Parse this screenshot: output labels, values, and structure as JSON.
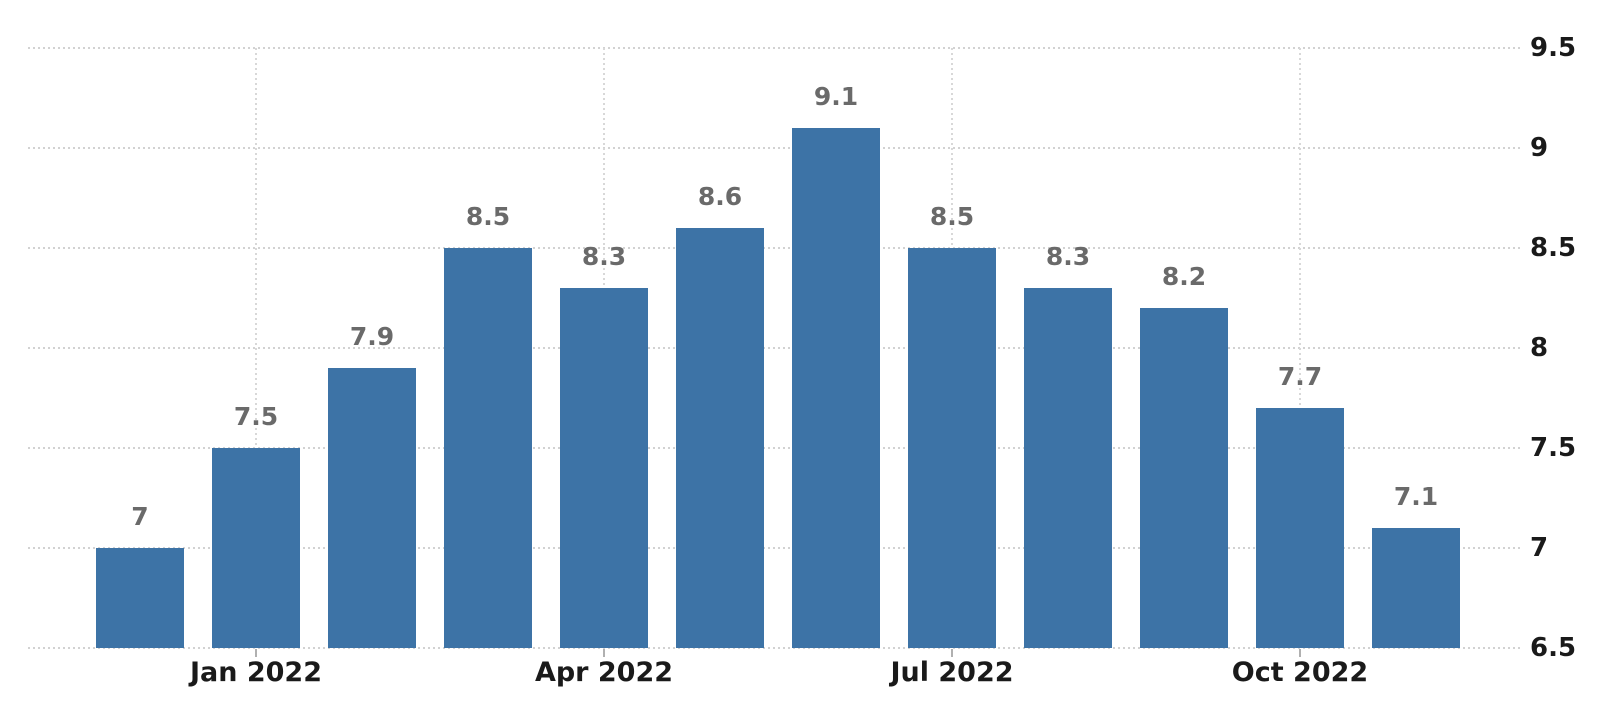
{
  "chart_data": {
    "type": "bar",
    "title": "",
    "xlabel": "",
    "ylabel": "",
    "ylim": [
      6.5,
      9.5
    ],
    "grid": "dotted",
    "legend": false,
    "y_axis_side": "right",
    "values": [
      7,
      7.5,
      7.9,
      8.5,
      8.3,
      8.6,
      9.1,
      8.5,
      8.3,
      8.2,
      7.7,
      7.1
    ],
    "bar_labels": [
      "7",
      "7.5",
      "7.9",
      "8.5",
      "8.3",
      "8.6",
      "9.1",
      "8.5",
      "8.3",
      "8.2",
      "7.7",
      "7.1"
    ],
    "x_ticks": [
      {
        "bar_index": 1,
        "label": "Jan 2022"
      },
      {
        "bar_index": 4,
        "label": "Apr 2022"
      },
      {
        "bar_index": 7,
        "label": "Jul 2022"
      },
      {
        "bar_index": 10,
        "label": "Oct 2022"
      }
    ],
    "y_ticks": [
      {
        "value": 9.5,
        "label": "9.5"
      },
      {
        "value": 9,
        "label": "9"
      },
      {
        "value": 8.5,
        "label": "8.5"
      },
      {
        "value": 8,
        "label": "8"
      },
      {
        "value": 7.5,
        "label": "7.5"
      },
      {
        "value": 7,
        "label": "7"
      },
      {
        "value": 6.5,
        "label": "6.5"
      }
    ],
    "colors": {
      "bar": "#3d73a6",
      "bar_value_label": "#6a6a6a",
      "axis_label": "#1a1a1a",
      "gridline": "#d5d5d5",
      "background": "#ffffff"
    }
  }
}
